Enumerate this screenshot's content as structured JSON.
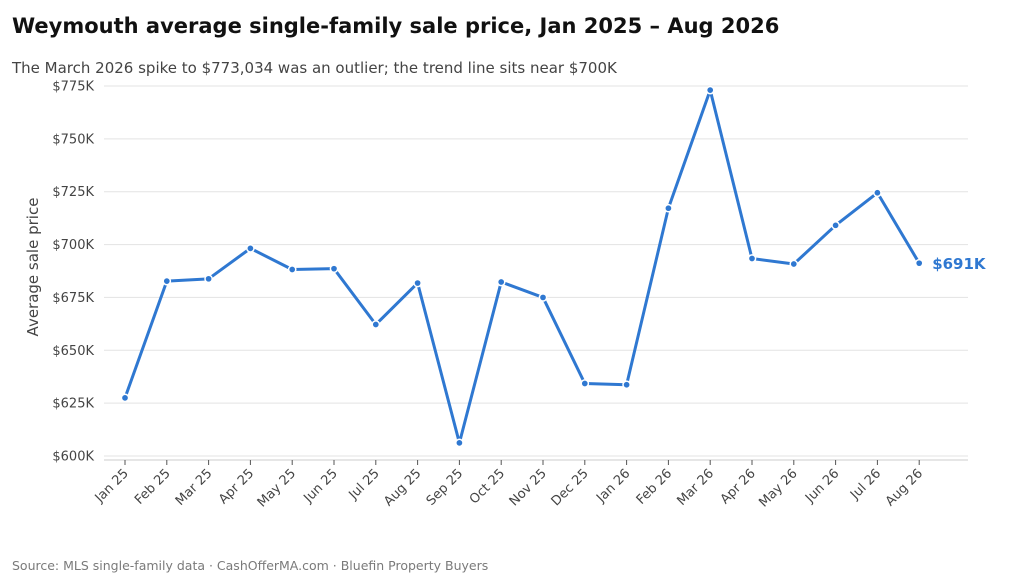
{
  "header": {
    "title": "Weymouth average single-family sale price, Jan 2025 – Aug 2026",
    "subtitle": "The March 2026 spike to $773,034 was an outlier; the trend line sits near $700K"
  },
  "footer": {
    "source": "Source: MLS single-family data  ·  CashOfferMA.com  ·  Bluefin Property Buyers"
  },
  "colors": {
    "line": "#2f78d1",
    "grid": "#e3e3e3",
    "axis": "#cccccc"
  },
  "chart_data": {
    "type": "line",
    "title": "Weymouth average single-family sale price, Jan 2025 – Aug 2026",
    "subtitle": "The March 2026 spike to $773,034 was an outlier; the trend line sits near $700K",
    "xlabel": "",
    "ylabel": "Average sale price",
    "categories": [
      "Jan 25",
      "Feb 25",
      "Mar 25",
      "Apr 25",
      "May 25",
      "Jun 25",
      "Jul 25",
      "Aug 25",
      "Sep 25",
      "Oct 25",
      "Nov 25",
      "Dec 25",
      "Jan 26",
      "Feb 26",
      "Mar 26",
      "Apr 26",
      "May 26",
      "Jun 26",
      "Jul 26",
      "Aug 26"
    ],
    "series": [
      {
        "values": [
          627500,
          682700,
          683800,
          698200,
          688200,
          688600,
          662200,
          681800,
          606200,
          682300,
          675000,
          634300,
          633700,
          717200,
          773034,
          693400,
          690800,
          709100,
          724500,
          691200
        ]
      }
    ],
    "ylim": [
      600000,
      775000
    ],
    "yticks": [
      600000,
      625000,
      650000,
      675000,
      700000,
      725000,
      750000,
      775000
    ],
    "ytick_labels": [
      "$600K",
      "$625K",
      "$650K",
      "$675K",
      "$700K",
      "$725K",
      "$750K",
      "$775K"
    ],
    "end_label": "$691K",
    "grid": true,
    "legend": "none"
  }
}
